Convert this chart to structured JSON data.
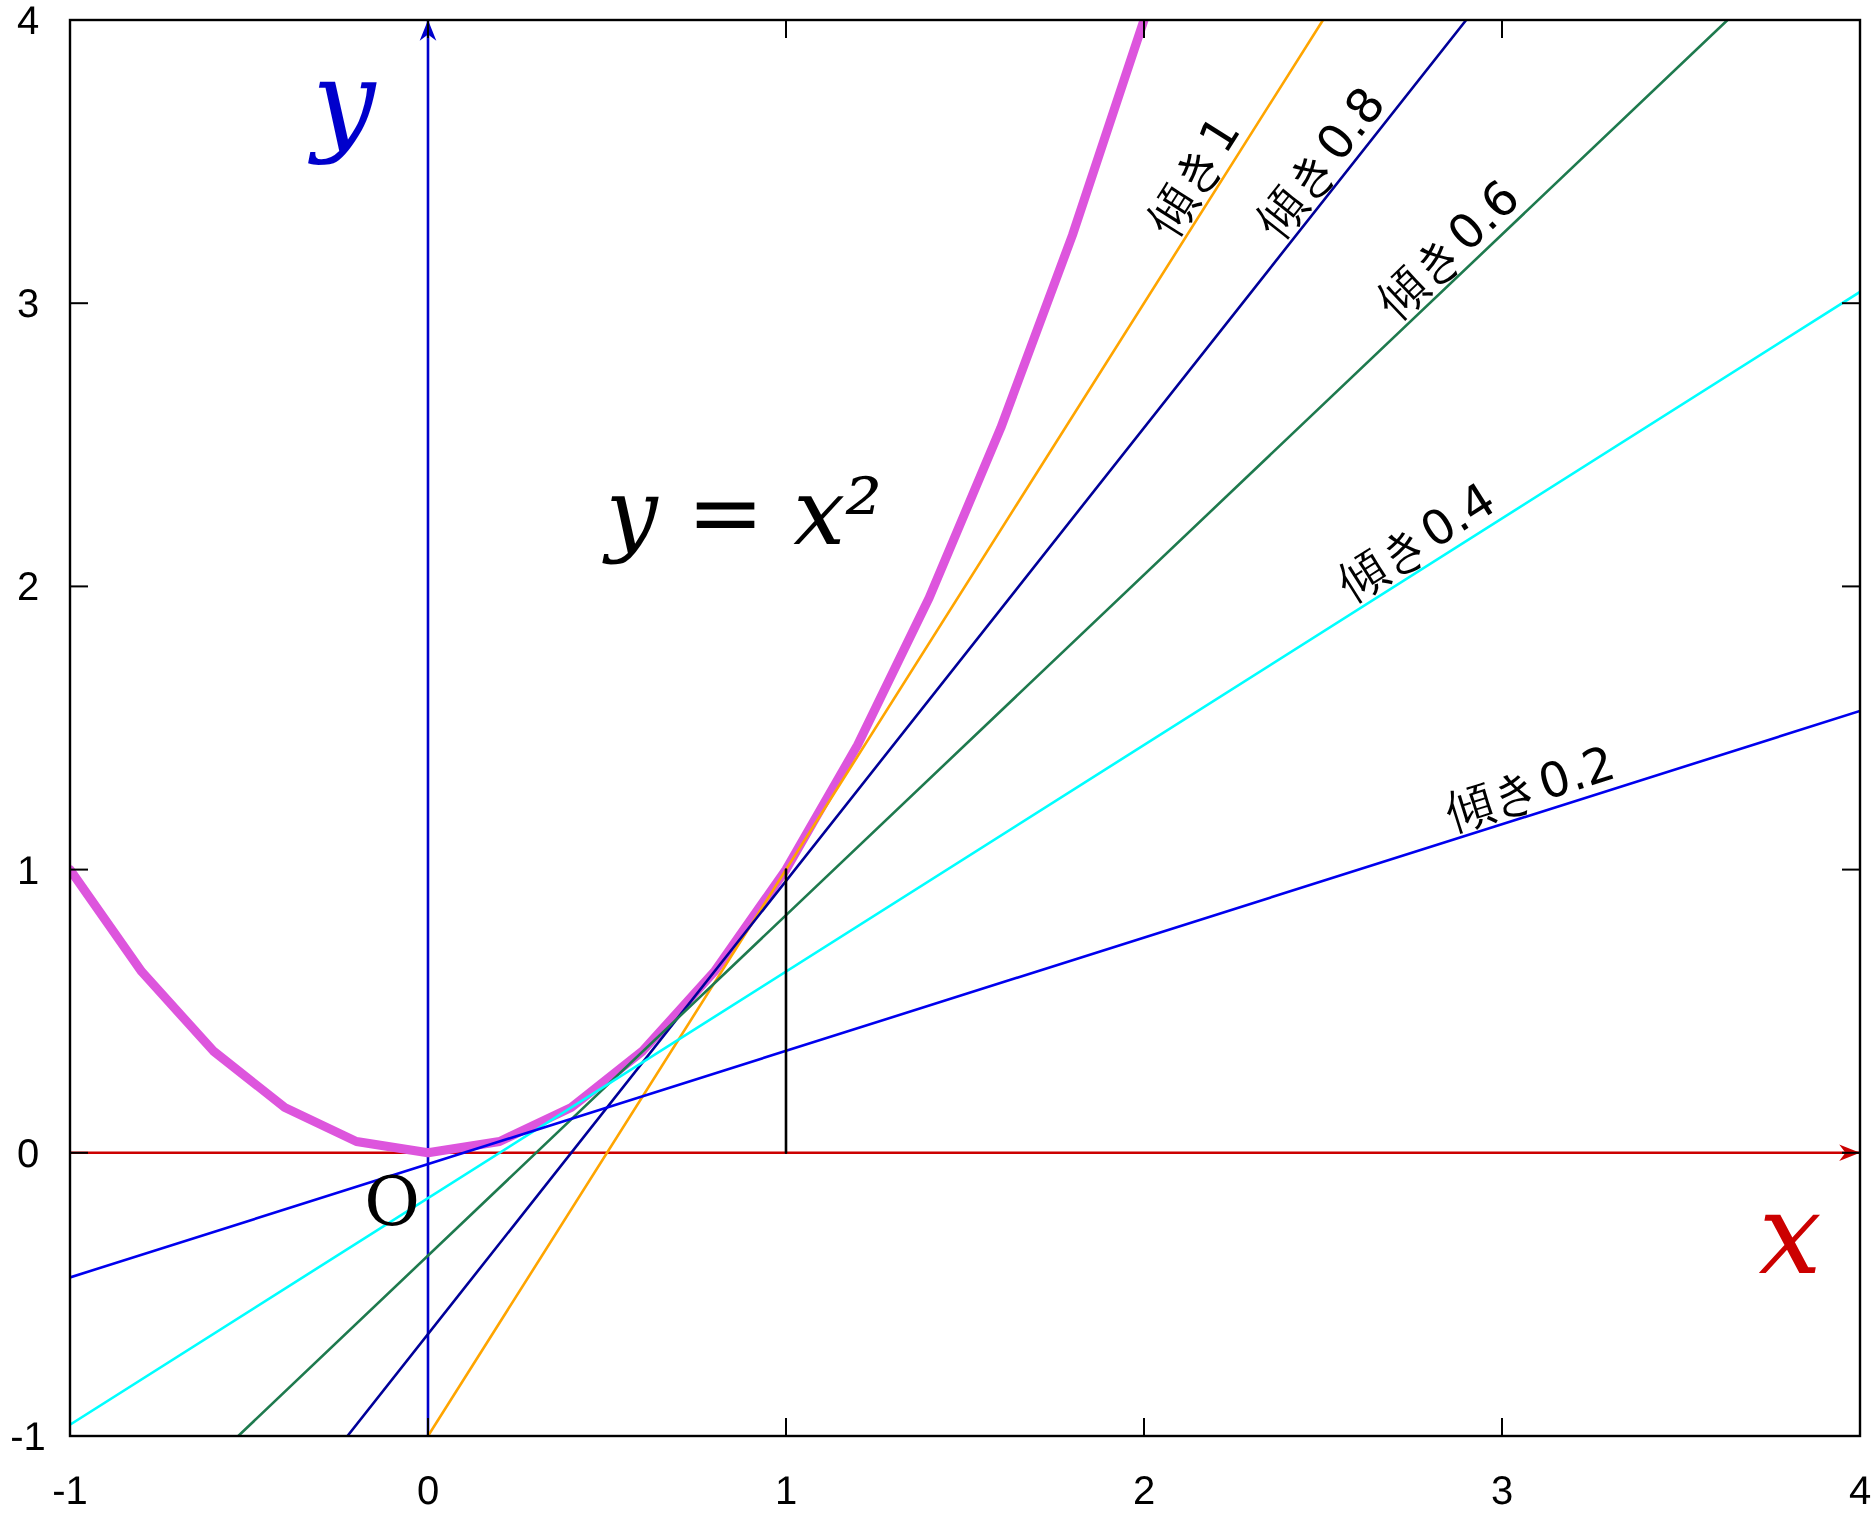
{
  "chart_data": {
    "type": "line",
    "xlim": [
      -1,
      4
    ],
    "ylim": [
      -1,
      4
    ],
    "xticks": [
      -1,
      0,
      1,
      2,
      3,
      4
    ],
    "yticks": [
      -1,
      0,
      1,
      2,
      3,
      4
    ],
    "series": [
      {
        "color": "#dd55dd",
        "x": [
          -1,
          -0.8,
          -0.6,
          -0.4,
          -0.2,
          0,
          0.2,
          0.4,
          0.6,
          0.8,
          1,
          1.2,
          1.4,
          1.6,
          1.8,
          2
        ],
        "values": [
          1,
          0.64,
          0.36,
          0.16,
          0.04,
          0,
          0.04,
          0.16,
          0.36,
          0.64,
          1,
          1.44,
          1.96,
          2.56,
          3.24,
          4
        ]
      },
      {
        "name": "傾き1",
        "color": "#ffa500",
        "x": [
          0,
          2.5
        ],
        "values": [
          -1,
          4
        ]
      },
      {
        "name": "傾き0.8",
        "color": "#000099",
        "x": [
          -0.225,
          2.9
        ],
        "values": [
          -1,
          4
        ]
      },
      {
        "name": "傾き0.6",
        "color": "#1e7a4e",
        "x": [
          -0.53,
          3.63
        ],
        "values": [
          -1,
          4
        ]
      },
      {
        "name": "傾き0.4",
        "color": "#00ffff",
        "x": [
          -1,
          4
        ],
        "values": [
          -0.96,
          3.04
        ]
      },
      {
        "name": "傾き0.2",
        "color": "#0000ee",
        "x": [
          -1,
          4
        ],
        "values": [
          -0.44,
          1.56
        ]
      },
      {
        "color": "#000000",
        "x": [
          1,
          1
        ],
        "values": [
          0,
          1
        ]
      }
    ],
    "ref_lines": [
      {
        "axis": "y",
        "value": 0,
        "label": "x",
        "color": "#cc0000"
      },
      {
        "axis": "x",
        "value": 0,
        "label": "y",
        "color": "#0000cc"
      }
    ],
    "annotations": [
      {
        "text": "O",
        "x": 0,
        "y": 0
      },
      "y = x²"
    ]
  }
}
